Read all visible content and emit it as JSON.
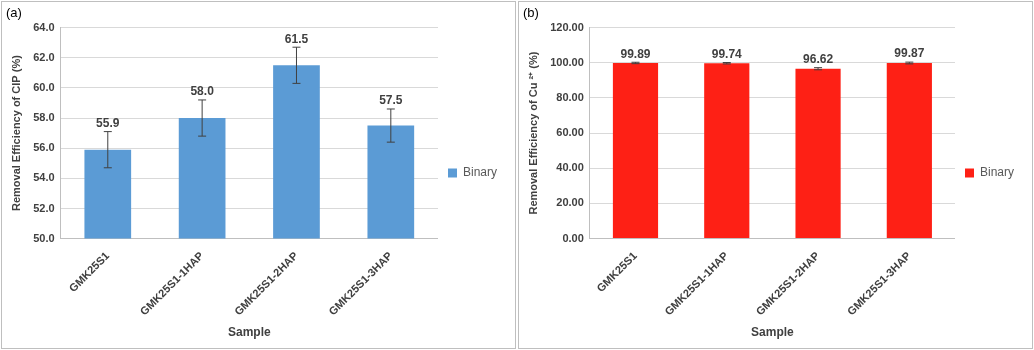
{
  "chart_data": [
    {
      "type": "bar",
      "title": "(a)",
      "x_label": "Sample",
      "y_label": "Removal Efficiency of CIP (%)",
      "categories": [
        "GMK25S1",
        "GMK25S1-1HAP",
        "GMK25S1-2HAP",
        "GMK25S1-3HAP"
      ],
      "series": [
        {
          "name": "Binary",
          "color": "#5b9bd5",
          "values": [
            55.9,
            58.0,
            61.5,
            57.5
          ],
          "value_labels": [
            "55.9",
            "58.0",
            "61.5",
            "57.5"
          ],
          "errors": [
            1.2,
            1.2,
            1.2,
            1.1
          ]
        }
      ],
      "ylim": [
        50,
        64
      ],
      "yticks": [
        {
          "value": 50,
          "label": "50.0"
        },
        {
          "value": 52,
          "label": "52.0"
        },
        {
          "value": 54,
          "label": "54.0"
        },
        {
          "value": 56,
          "label": "56.0"
        },
        {
          "value": 58,
          "label": "58.0"
        },
        {
          "value": 60,
          "label": "60.0"
        },
        {
          "value": 62,
          "label": "62.0"
        },
        {
          "value": 64,
          "label": "64.0"
        }
      ],
      "grid": true,
      "legend": "right",
      "data_labels": true
    },
    {
      "type": "bar",
      "title": "(b)",
      "x_label": "Sample",
      "y_label": "Removal Efficiency of Cu ²⁺ (%)",
      "categories": [
        "GMK25S1",
        "GMK25S1-1HAP",
        "GMK25S1-2HAP",
        "GMK25S1-3HAP"
      ],
      "series": [
        {
          "name": "Binary",
          "color": "#fe2015",
          "values": [
            99.89,
            99.74,
            96.62,
            99.87
          ],
          "errors": [
            0.4,
            0.4,
            0.6,
            0.5
          ]
        }
      ],
      "ylim": [
        0,
        120
      ],
      "yticks": [
        {
          "value": 0,
          "label": "0.00"
        },
        {
          "value": 20,
          "label": "20.00"
        },
        {
          "value": 40,
          "label": "40.00"
        },
        {
          "value": 60,
          "label": "60.00"
        },
        {
          "value": 80,
          "label": "80.00"
        },
        {
          "value": 100,
          "label": "100.00"
        },
        {
          "value": 120,
          "label": "120.00"
        }
      ],
      "grid": true,
      "legend": "right",
      "data_labels": true
    }
  ]
}
